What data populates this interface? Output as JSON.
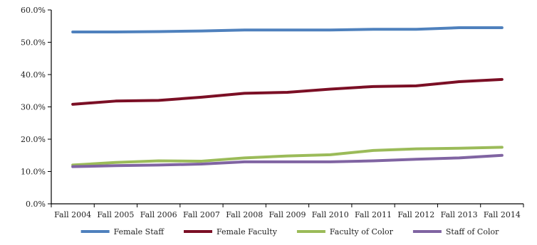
{
  "chart_data": {
    "type": "line",
    "title": "",
    "xlabel": "",
    "ylabel": "",
    "x": [
      "Fall 2004",
      "Fall 2005",
      "Fall 2006",
      "Fall 2007",
      "Fall 2008",
      "Fall 2009",
      "Fall 2010",
      "Fall 2011",
      "Fall 2012",
      "Fall 2013",
      "Fall 2014"
    ],
    "ylim": [
      0,
      60
    ],
    "y_ticks": [
      0,
      10,
      20,
      30,
      40,
      50,
      60
    ],
    "y_tick_format": "percent_one_decimal",
    "grid": false,
    "legend_position": "bottom",
    "series": [
      {
        "name": "Female Staff",
        "color": "#4f81bd",
        "values": [
          53.2,
          53.2,
          53.3,
          53.5,
          53.8,
          53.8,
          53.8,
          54.0,
          54.0,
          54.5,
          54.5
        ]
      },
      {
        "name": "Female Faculty",
        "color": "#7b0f25",
        "values": [
          30.8,
          31.8,
          32.0,
          33.0,
          34.2,
          34.5,
          35.5,
          36.3,
          36.5,
          37.8,
          38.5
        ]
      },
      {
        "name": "Faculty of Color",
        "color": "#9bbb59",
        "values": [
          12.0,
          12.8,
          13.3,
          13.2,
          14.2,
          14.8,
          15.2,
          16.5,
          17.0,
          17.2,
          17.5
        ]
      },
      {
        "name": "Staff of Color",
        "color": "#8064a2",
        "values": [
          11.5,
          11.8,
          12.0,
          12.3,
          13.0,
          13.0,
          13.0,
          13.3,
          13.8,
          14.2,
          15.0
        ]
      }
    ]
  }
}
